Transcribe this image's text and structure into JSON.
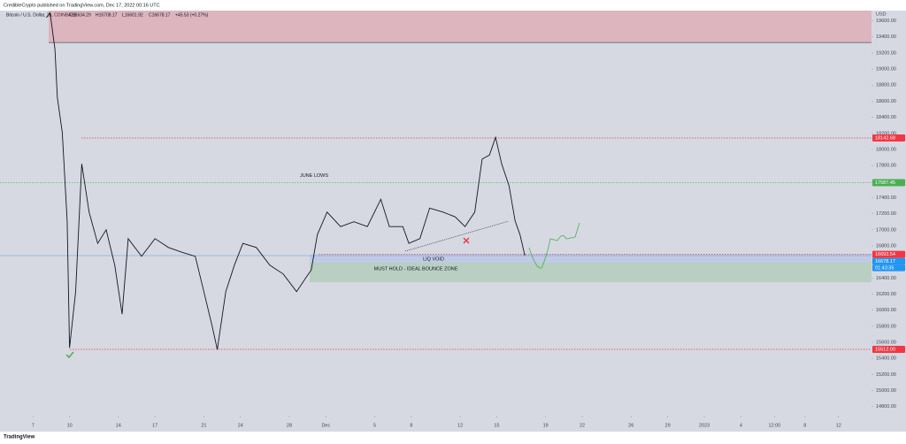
{
  "header": {
    "publisher": "CredibleCrypto published on TradingView.com, Dec 17, 2022 00:16 UTC"
  },
  "chart_data": {
    "type": "line",
    "title": "Bitcoin / U.S. Dollar, 2h, COINBASE",
    "legend_values": [
      "O16634.29",
      "H16708.17",
      "L16601.92",
      "C16678.17",
      "+45.53 (+0.27%)"
    ],
    "y_unit": "USD",
    "color": "#131722",
    "x": [
      1.1,
      1.4,
      1.8,
      2.0,
      2.4,
      2.8,
      3.0,
      3.5,
      4.0,
      4.6,
      5.3,
      6.0,
      6.7,
      7.3,
      7.8,
      8.9,
      10.0,
      11.1,
      12.2,
      13.3,
      14.0,
      14.7,
      15.1,
      15.8,
      16.5,
      17.2,
      18.3,
      19.4,
      20.5,
      21.6,
      22.3,
      22.8,
      23.3,
      24.1,
      25.2,
      26.3,
      27.4,
      28.5,
      29.2,
      30.3,
      30.8,
      31.7,
      32.5,
      33.6,
      34.6,
      35.4,
      36.2,
      36.8,
      37.4,
      37.9,
      38.4,
      39.0,
      39.5,
      39.9,
      40.3
    ],
    "values": [
      19640,
      19700,
      19250,
      18650,
      18210,
      17110,
      15530,
      16230,
      17820,
      17220,
      16830,
      17000,
      16560,
      15950,
      16890,
      16670,
      16890,
      16780,
      16720,
      16670,
      16230,
      15790,
      15510,
      16230,
      16560,
      16830,
      16780,
      16560,
      16450,
      16230,
      16390,
      16500,
      16940,
      17220,
      17040,
      17100,
      17040,
      17380,
      17040,
      17040,
      16830,
      16890,
      17270,
      17220,
      17160,
      17040,
      17220,
      17880,
      17930,
      18150,
      17820,
      17550,
      17110,
      16940,
      16680
    ],
    "xlim": [
      -2.7,
      68.7
    ],
    "xticks": [
      {
        "value": 0,
        "label": "7"
      },
      {
        "value": 3,
        "label": "10"
      },
      {
        "value": 7,
        "label": "14"
      },
      {
        "value": 10,
        "label": "17"
      },
      {
        "value": 14,
        "label": "21"
      },
      {
        "value": 17,
        "label": "24"
      },
      {
        "value": 21,
        "label": "28"
      },
      {
        "value": 24,
        "label": "Dec"
      },
      {
        "value": 28,
        "label": "5"
      },
      {
        "value": 31,
        "label": "8"
      },
      {
        "value": 35,
        "label": "12"
      },
      {
        "value": 38,
        "label": "15"
      },
      {
        "value": 42,
        "label": "19"
      },
      {
        "value": 45,
        "label": "22"
      },
      {
        "value": 49,
        "label": "26"
      },
      {
        "value": 52,
        "label": "29"
      },
      {
        "value": 55,
        "label": "2023"
      },
      {
        "value": 58,
        "label": "4"
      },
      {
        "value": 60.75,
        "label": "12:00"
      },
      {
        "value": 63.25,
        "label": "8"
      },
      {
        "value": 66,
        "label": "12"
      }
    ],
    "ylim": [
      14686,
      19728
    ],
    "yticks": [
      {
        "value": 14800,
        "label": "14800.00"
      },
      {
        "value": 15000,
        "label": "15000.00"
      },
      {
        "value": 15200,
        "label": "15200.00"
      },
      {
        "value": 15400,
        "label": "15400.00"
      },
      {
        "value": 15600,
        "label": "15600.00"
      },
      {
        "value": 15800,
        "label": "15800.00"
      },
      {
        "value": 16000,
        "label": "16000.00"
      },
      {
        "value": 16200,
        "label": "16200.00"
      },
      {
        "value": 16400,
        "label": "16400.00"
      },
      {
        "value": 16600,
        "label": "16600.00"
      },
      {
        "value": 16800,
        "label": "16800.00"
      },
      {
        "value": 17000,
        "label": "17000.00"
      },
      {
        "value": 17200,
        "label": "17200.00"
      },
      {
        "value": 17400,
        "label": "17400.00"
      },
      {
        "value": 17600,
        "label": "17600.00"
      },
      {
        "value": 17800,
        "label": "17800.00"
      },
      {
        "value": 18000,
        "label": "18000.00"
      },
      {
        "value": 18200,
        "label": "18200.00"
      },
      {
        "value": 18400,
        "label": "18400.00"
      },
      {
        "value": 18600,
        "label": "18600.00"
      },
      {
        "value": 18800,
        "label": "18800.00"
      },
      {
        "value": 19000,
        "label": "19000.00"
      },
      {
        "value": 19200,
        "label": "19200.00"
      },
      {
        "value": 19400,
        "label": "19400.00"
      },
      {
        "value": 19600,
        "label": "19600.00"
      }
    ],
    "grid": false,
    "zones": [
      {
        "low": 19330,
        "high": 19728,
        "color": "#f23645"
      },
      {
        "low": 16591,
        "high": 16690,
        "color": "#2962ff",
        "text": "LIQ VOID"
      },
      {
        "low": 16348,
        "high": 16591,
        "color": "#4caf50",
        "text": "MUST HOLD - IDEAL BOUNCE ZONE"
      }
    ],
    "levels": [
      {
        "value": 18142.68,
        "label": "18142.68",
        "color": "#f23645"
      },
      {
        "value": 17587.45,
        "label": "17587.45",
        "color": "#4caf50",
        "text": "JUNE LOWS"
      },
      {
        "value": 15512,
        "label": "15512.00",
        "color": "#f23645"
      },
      {
        "value": 16693.54,
        "label": "16693.54",
        "color": "#f23645"
      },
      {
        "value": 16678.17,
        "label": "16678.17",
        "color": "#2196f3",
        "sublabel": "01:43:35"
      }
    ]
  },
  "footer": {
    "brand": "TradingView"
  }
}
